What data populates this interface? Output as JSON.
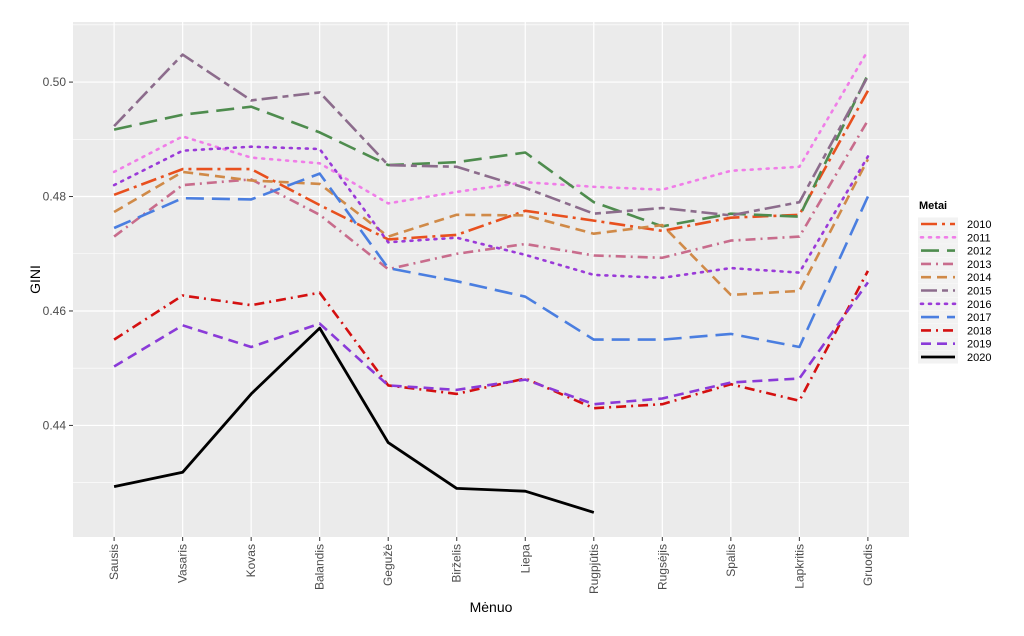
{
  "chart_data": {
    "type": "line",
    "title": "",
    "xlabel": "Mėnuo",
    "ylabel": "GINI",
    "categories": [
      "Sausis",
      "Vasaris",
      "Kovas",
      "Balandis",
      "Gegužė",
      "Birželis",
      "Liepa",
      "Rugpjūtis",
      "Rugsėjis",
      "Spalis",
      "Lapkritis",
      "Gruodis"
    ],
    "ylim": [
      0.4205,
      0.5105
    ],
    "yticks": [
      0.44,
      0.46,
      0.48,
      0.5
    ],
    "ytick_labels": [
      "0.44",
      "0.46",
      "0.48",
      "0.50"
    ],
    "grid": true,
    "legend_title": "Metai",
    "legend_position": "right",
    "series": [
      {
        "name": "2010",
        "color": "#e8501e",
        "dash": "longdash-dot",
        "width": 2.6,
        "values": [
          0.4803,
          0.4848,
          0.4848,
          0.4785,
          0.4725,
          0.4733,
          0.4775,
          0.4758,
          0.474,
          0.4763,
          0.4768,
          0.4985
        ]
      },
      {
        "name": "2011",
        "color": "#f07de8",
        "dash": "dotted",
        "width": 2.6,
        "values": [
          0.4843,
          0.4905,
          0.4868,
          0.4858,
          0.4788,
          0.4808,
          0.4825,
          0.4817,
          0.4812,
          0.4845,
          0.4852,
          0.5055
        ]
      },
      {
        "name": "2012",
        "color": "#4e8c4e",
        "dash": "longdash",
        "width": 2.6,
        "values": [
          0.4917,
          0.4943,
          0.4957,
          0.4912,
          0.4855,
          0.486,
          0.4877,
          0.479,
          0.4748,
          0.477,
          0.4765,
          0.5013
        ]
      },
      {
        "name": "2013",
        "color": "#c86c8c",
        "dash": "dashdot",
        "width": 2.6,
        "values": [
          0.473,
          0.482,
          0.483,
          0.4768,
          0.4673,
          0.47,
          0.4717,
          0.4697,
          0.4693,
          0.4723,
          0.473,
          0.4933
        ]
      },
      {
        "name": "2014",
        "color": "#d08a48",
        "dash": "dashed",
        "width": 2.6,
        "values": [
          0.4773,
          0.4843,
          0.4828,
          0.4822,
          0.473,
          0.4768,
          0.4767,
          0.4735,
          0.475,
          0.4628,
          0.4635,
          0.4865
        ]
      },
      {
        "name": "2015",
        "color": "#8c6c8c",
        "dash": "twodash",
        "width": 2.6,
        "values": [
          0.4923,
          0.5048,
          0.4968,
          0.4982,
          0.4855,
          0.4852,
          0.4815,
          0.477,
          0.478,
          0.4767,
          0.479,
          0.501
        ]
      },
      {
        "name": "2016",
        "color": "#9a3ad8",
        "dash": "dotted",
        "width": 2.6,
        "values": [
          0.482,
          0.488,
          0.4887,
          0.4883,
          0.472,
          0.4728,
          0.4698,
          0.4663,
          0.4658,
          0.4675,
          0.4667,
          0.487
        ]
      },
      {
        "name": "2017",
        "color": "#4a7ee0",
        "dash": "longdash",
        "width": 2.6,
        "values": [
          0.4745,
          0.4797,
          0.4795,
          0.484,
          0.4675,
          0.4652,
          0.4625,
          0.455,
          0.455,
          0.456,
          0.4537,
          0.48
        ]
      },
      {
        "name": "2018",
        "color": "#d41010",
        "dash": "dashdot",
        "width": 2.6,
        "values": [
          0.455,
          0.4627,
          0.461,
          0.4632,
          0.447,
          0.4455,
          0.4482,
          0.443,
          0.4437,
          0.4472,
          0.4443,
          0.467
        ]
      },
      {
        "name": "2019",
        "color": "#8a3ad8",
        "dash": "dashed",
        "width": 2.6,
        "values": [
          0.4503,
          0.4575,
          0.4537,
          0.4578,
          0.447,
          0.4462,
          0.448,
          0.4437,
          0.4447,
          0.4475,
          0.4482,
          0.465
        ]
      },
      {
        "name": "2020",
        "color": "#000000",
        "dash": "solid",
        "width": 2.8,
        "values": [
          0.4293,
          0.4318,
          0.4455,
          0.457,
          0.437,
          0.429,
          0.4285,
          0.4248,
          null,
          null,
          null,
          null
        ]
      }
    ]
  }
}
